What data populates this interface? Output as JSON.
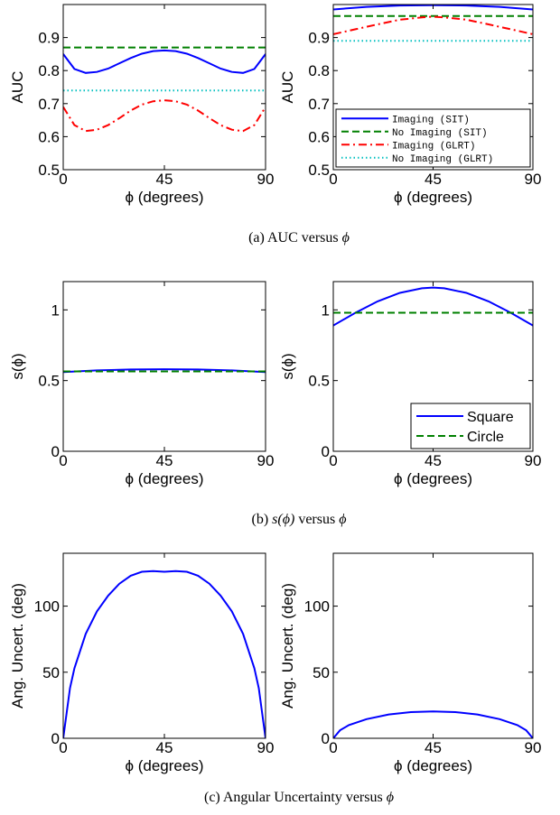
{
  "colors": {
    "blue": "#0000ff",
    "green": "#008000",
    "red": "#ff0000",
    "cyan": "#00bfbf"
  },
  "captions": [
    {
      "prefix": "(a) AUC versus ",
      "math": "ϕ"
    },
    {
      "prefix": "(b) ",
      "math": "s(ϕ)",
      "mid": " versus ",
      "math2": "ϕ"
    },
    {
      "prefix": "(c) Angular Uncertainty versus ",
      "math": "ϕ"
    }
  ],
  "chart_data": [
    {
      "type": "line",
      "xlabel": "ϕ (degrees)",
      "ylabel": "AUC",
      "xlim": [
        0,
        90
      ],
      "ylim": [
        0.5,
        1.0
      ],
      "xticks": [
        0,
        45,
        90
      ],
      "xtick_labels": [
        "0",
        "45",
        "90"
      ],
      "yticks": [
        0.5,
        0.6,
        0.7,
        0.8,
        0.9
      ],
      "ytick_labels": [
        "0.5",
        "0.6",
        "0.7",
        "0.8",
        "0.9"
      ],
      "legend": null,
      "series": [
        {
          "style": "solid",
          "color": "blue",
          "x": [
            0,
            5,
            10,
            15,
            20,
            25,
            30,
            35,
            40,
            45,
            50,
            55,
            60,
            65,
            70,
            75,
            80,
            85,
            90
          ],
          "y": [
            0.85,
            0.805,
            0.793,
            0.796,
            0.806,
            0.822,
            0.838,
            0.851,
            0.859,
            0.861,
            0.859,
            0.851,
            0.838,
            0.822,
            0.806,
            0.796,
            0.793,
            0.805,
            0.85
          ]
        },
        {
          "style": "dashed",
          "color": "green",
          "x": [
            0,
            90
          ],
          "y": [
            0.87,
            0.87
          ]
        },
        {
          "style": "dashdot",
          "color": "red",
          "x": [
            0,
            5,
            10,
            15,
            20,
            25,
            30,
            35,
            40,
            45,
            50,
            55,
            60,
            65,
            70,
            75,
            80,
            85,
            90
          ],
          "y": [
            0.69,
            0.635,
            0.617,
            0.621,
            0.635,
            0.656,
            0.679,
            0.697,
            0.707,
            0.71,
            0.707,
            0.697,
            0.679,
            0.656,
            0.635,
            0.621,
            0.617,
            0.635,
            0.69
          ]
        },
        {
          "style": "dotted",
          "color": "cyan",
          "x": [
            0,
            90
          ],
          "y": [
            0.74,
            0.74
          ]
        }
      ]
    },
    {
      "type": "line",
      "xlabel": "ϕ (degrees)",
      "ylabel": "AUC",
      "xlim": [
        0,
        90
      ],
      "ylim": [
        0.5,
        1.0
      ],
      "xticks": [
        0,
        45,
        90
      ],
      "xtick_labels": [
        "0",
        "45",
        "90"
      ],
      "yticks": [
        0.5,
        0.6,
        0.7,
        0.8,
        0.9
      ],
      "ytick_labels": [
        "0.5",
        "0.6",
        "0.7",
        "0.8",
        "0.9"
      ],
      "legend": {
        "position": "bottom-right",
        "font": "mono"
      },
      "series": [
        {
          "name": "Imaging (SIT)",
          "style": "solid",
          "color": "blue",
          "x": [
            0,
            15,
            30,
            45,
            60,
            75,
            90
          ],
          "y": [
            0.985,
            0.993,
            0.997,
            0.998,
            0.997,
            0.993,
            0.985
          ]
        },
        {
          "name": "No Imaging (SIT)",
          "style": "dashed",
          "color": "green",
          "x": [
            0,
            90
          ],
          "y": [
            0.965,
            0.965
          ]
        },
        {
          "name": "Imaging (GLRT)",
          "style": "dashdot",
          "color": "red",
          "x": [
            0,
            10,
            20,
            30,
            40,
            45,
            50,
            60,
            70,
            80,
            90
          ],
          "y": [
            0.91,
            0.925,
            0.94,
            0.954,
            0.961,
            0.963,
            0.961,
            0.954,
            0.94,
            0.925,
            0.91
          ]
        },
        {
          "name": "No Imaging (GLRT)",
          "style": "dotted",
          "color": "cyan",
          "x": [
            0,
            90
          ],
          "y": [
            0.89,
            0.89
          ]
        }
      ]
    },
    {
      "type": "line",
      "xlabel": "ϕ (degrees)",
      "ylabel": "s(ϕ)",
      "xlim": [
        0,
        90
      ],
      "ylim": [
        0,
        1.2
      ],
      "xticks": [
        0,
        45,
        90
      ],
      "xtick_labels": [
        "0",
        "45",
        "90"
      ],
      "yticks": [
        0,
        0.5,
        1
      ],
      "ytick_labels": [
        "0",
        "0.5",
        "1"
      ],
      "legend": null,
      "series": [
        {
          "style": "solid",
          "color": "blue",
          "x": [
            0,
            15,
            30,
            45,
            60,
            75,
            90
          ],
          "y": [
            0.56,
            0.572,
            0.578,
            0.58,
            0.578,
            0.572,
            0.56
          ]
        },
        {
          "style": "dashed",
          "color": "green",
          "x": [
            0,
            90
          ],
          "y": [
            0.565,
            0.565
          ]
        }
      ]
    },
    {
      "type": "line",
      "xlabel": "ϕ (degrees)",
      "ylabel": "s(ϕ)",
      "xlim": [
        0,
        90
      ],
      "ylim": [
        0,
        1.2
      ],
      "xticks": [
        0,
        45,
        90
      ],
      "xtick_labels": [
        "0",
        "45",
        "90"
      ],
      "yticks": [
        0,
        0.5,
        1
      ],
      "ytick_labels": [
        "0",
        "0.5",
        "1"
      ],
      "legend": {
        "position": "bottom-right",
        "font": "sans"
      },
      "series": [
        {
          "name": "Square",
          "style": "solid",
          "color": "blue",
          "x": [
            0,
            10,
            20,
            30,
            40,
            45,
            50,
            60,
            70,
            80,
            90
          ],
          "y": [
            0.89,
            0.98,
            1.06,
            1.12,
            1.153,
            1.158,
            1.153,
            1.12,
            1.06,
            0.98,
            0.89
          ]
        },
        {
          "name": "Circle",
          "style": "dashed",
          "color": "green",
          "x": [
            0,
            90
          ],
          "y": [
            0.98,
            0.98
          ]
        }
      ]
    },
    {
      "type": "line",
      "xlabel": "ϕ (degrees)",
      "ylabel": "Ang. Uncert. (deg)",
      "xlim": [
        0,
        90
      ],
      "ylim": [
        0,
        140
      ],
      "xticks": [
        0,
        45,
        90
      ],
      "xtick_labels": [
        "0",
        "45",
        "90"
      ],
      "yticks": [
        0,
        50,
        100
      ],
      "ytick_labels": [
        "0",
        "50",
        "100"
      ],
      "legend": null,
      "series": [
        {
          "style": "solid",
          "color": "blue",
          "x": [
            0,
            3,
            5,
            10,
            15,
            20,
            25,
            30,
            35,
            40,
            45,
            50,
            55,
            60,
            65,
            70,
            75,
            80,
            85,
            87,
            90
          ],
          "y": [
            0,
            38,
            53,
            79,
            96,
            108,
            117,
            123,
            126,
            126.5,
            126,
            126.5,
            126,
            123,
            117,
            108,
            96,
            79,
            53,
            38,
            0
          ]
        }
      ]
    },
    {
      "type": "line",
      "xlabel": "ϕ (degrees)",
      "ylabel": "Ang. Uncert. (deg)",
      "xlim": [
        0,
        90
      ],
      "ylim": [
        0,
        140
      ],
      "xticks": [
        0,
        45,
        90
      ],
      "xtick_labels": [
        "0",
        "45",
        "90"
      ],
      "yticks": [
        0,
        50,
        100
      ],
      "ytick_labels": [
        "0",
        "50",
        "100"
      ],
      "legend": null,
      "series": [
        {
          "style": "solid",
          "color": "blue",
          "x": [
            0,
            3,
            7,
            15,
            25,
            35,
            45,
            55,
            65,
            75,
            83,
            87,
            90
          ],
          "y": [
            0,
            6,
            10,
            14.5,
            18,
            19.8,
            20.3,
            19.8,
            18,
            14.5,
            10,
            6,
            0
          ]
        }
      ]
    }
  ]
}
